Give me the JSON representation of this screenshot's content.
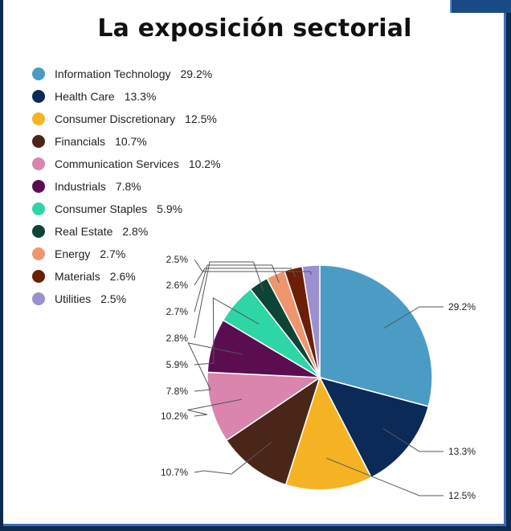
{
  "title": "La exposición sectorial",
  "chart_data": {
    "type": "pie",
    "title": "La exposición sectorial",
    "slices": [
      {
        "name": "Information Technology",
        "value": 29.2,
        "label": "29.2%",
        "color": "#4a9cc4"
      },
      {
        "name": "Health Care",
        "value": 13.3,
        "label": "13.3%",
        "color": "#0b2a57"
      },
      {
        "name": "Consumer Discretionary",
        "value": 12.5,
        "label": "12.5%",
        "color": "#f5b324"
      },
      {
        "name": "Financials",
        "value": 10.7,
        "label": "10.7%",
        "color": "#4a2619"
      },
      {
        "name": "Communication Services",
        "value": 10.2,
        "label": "10.2%",
        "color": "#d985ad"
      },
      {
        "name": "Industrials",
        "value": 7.8,
        "label": "7.8%",
        "color": "#5c0d50"
      },
      {
        "name": "Consumer Staples",
        "value": 5.9,
        "label": "5.9%",
        "color": "#2ed6a6"
      },
      {
        "name": "Real Estate",
        "value": 2.8,
        "label": "2.8%",
        "color": "#0d4435"
      },
      {
        "name": "Energy",
        "value": 2.7,
        "label": "2.7%",
        "color": "#ef9570"
      },
      {
        "name": "Materials",
        "value": 2.6,
        "label": "2.6%",
        "color": "#6b1f06"
      },
      {
        "name": "Utilities",
        "value": 2.5,
        "label": "2.5%",
        "color": "#9b8fd0"
      }
    ],
    "legend_position": "top-left"
  }
}
